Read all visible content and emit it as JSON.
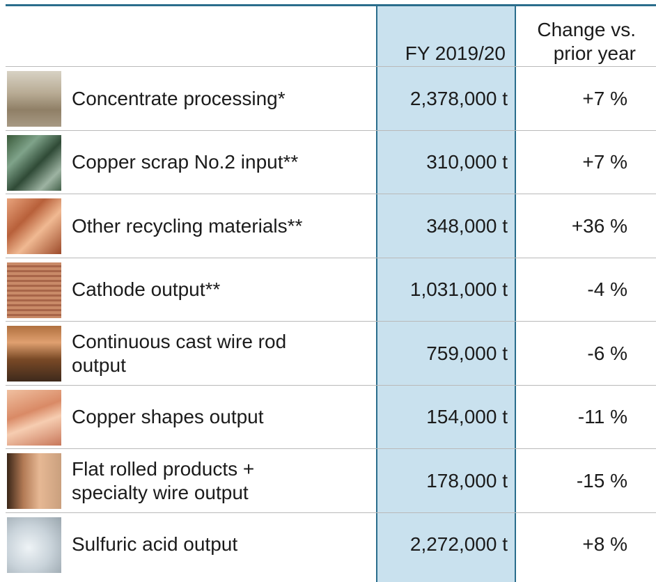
{
  "table": {
    "header": {
      "value": [
        "FY 2019/20"
      ],
      "change": [
        "Change vs.",
        "prior year"
      ]
    },
    "rows": [
      {
        "label": [
          "Concentrate processing*"
        ],
        "value": "2,378,000 t",
        "change": "+7 %"
      },
      {
        "label": [
          "Copper scrap No.2 input**"
        ],
        "value": "310,000 t",
        "change": "+7 %"
      },
      {
        "label": [
          "Other recycling materials**"
        ],
        "value": "348,000 t",
        "change": "+36 %"
      },
      {
        "label": [
          "Cathode output**"
        ],
        "value": "1,031,000 t",
        "change": "-4 %"
      },
      {
        "label": [
          "Continuous cast wire rod",
          "output"
        ],
        "value": "759,000 t",
        "change": "-6 %"
      },
      {
        "label": [
          "Copper shapes output"
        ],
        "value": "154,000 t",
        "change": "-11 %"
      },
      {
        "label": [
          "Flat rolled products +",
          "specialty wire output"
        ],
        "value": "178,000 t",
        "change": "-15 %"
      },
      {
        "label": [
          "Sulfuric acid output"
        ],
        "value": "2,272,000 t",
        "change": "+8 %"
      }
    ]
  }
}
